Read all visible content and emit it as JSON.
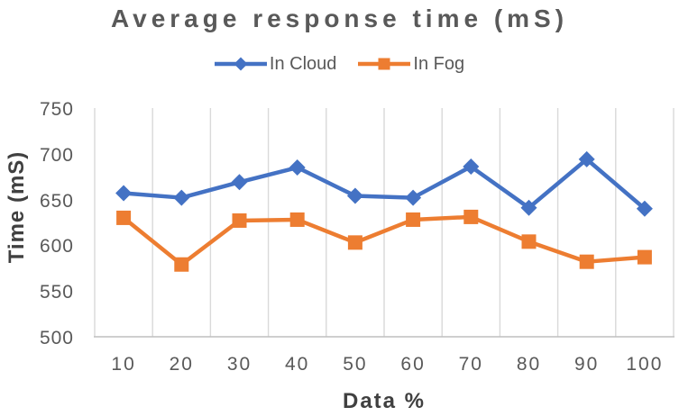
{
  "title": "Average response time (mS)",
  "chart_data": {
    "type": "line",
    "title": "Average response time (mS)",
    "xlabel": "Data %",
    "ylabel": "Time (mS)",
    "categories": [
      "10",
      "20",
      "30",
      "40",
      "50",
      "60",
      "70",
      "80",
      "90",
      "100"
    ],
    "series": [
      {
        "name": "In Cloud",
        "color": "#4472C4",
        "marker": "diamond",
        "values": [
          657,
          652,
          669,
          685,
          654,
          652,
          686,
          641,
          694,
          640
        ]
      },
      {
        "name": "In Fog",
        "color": "#ED7D31",
        "marker": "square",
        "values": [
          630,
          579,
          627,
          628,
          603,
          628,
          631,
          604,
          582,
          587
        ]
      }
    ],
    "ylim": [
      500,
      750
    ],
    "yticks": [
      500,
      550,
      600,
      650,
      700,
      750
    ],
    "grid": "vertical-only",
    "legend_position": "top"
  },
  "colors": {
    "grid": "#D9D9D9",
    "axis_line": "#BFBFBF",
    "tick_label": "#595959",
    "axis_title": "#404040",
    "title": "#595959",
    "cloud": "#4472C4",
    "fog": "#ED7D31"
  }
}
